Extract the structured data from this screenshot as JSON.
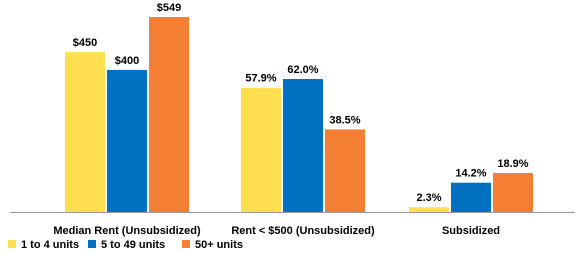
{
  "chart_data": {
    "type": "bar",
    "categories": [
      "Median Rent (Unsubsidized)",
      "Rent < $500 (Unsubsidized)",
      "Subsidized"
    ],
    "series": [
      {
        "name": "1 to 4 units",
        "color": "#ffdf4f",
        "values": [
          450,
          57.9,
          2.3
        ],
        "value_labels": [
          "$450",
          "57.9%",
          "2.3%"
        ]
      },
      {
        "name": "5 to 49 units",
        "color": "#0070c0",
        "values": [
          400,
          62.0,
          14.2
        ],
        "value_labels": [
          "$400",
          "62.0%",
          "14.2%"
        ]
      },
      {
        "name": "50+ units",
        "color": "#f47f34",
        "values": [
          549,
          38.5,
          18.9
        ],
        "value_labels": [
          "$549",
          "38.5%",
          "18.9%"
        ]
      }
    ],
    "legend": "bottom-left"
  }
}
